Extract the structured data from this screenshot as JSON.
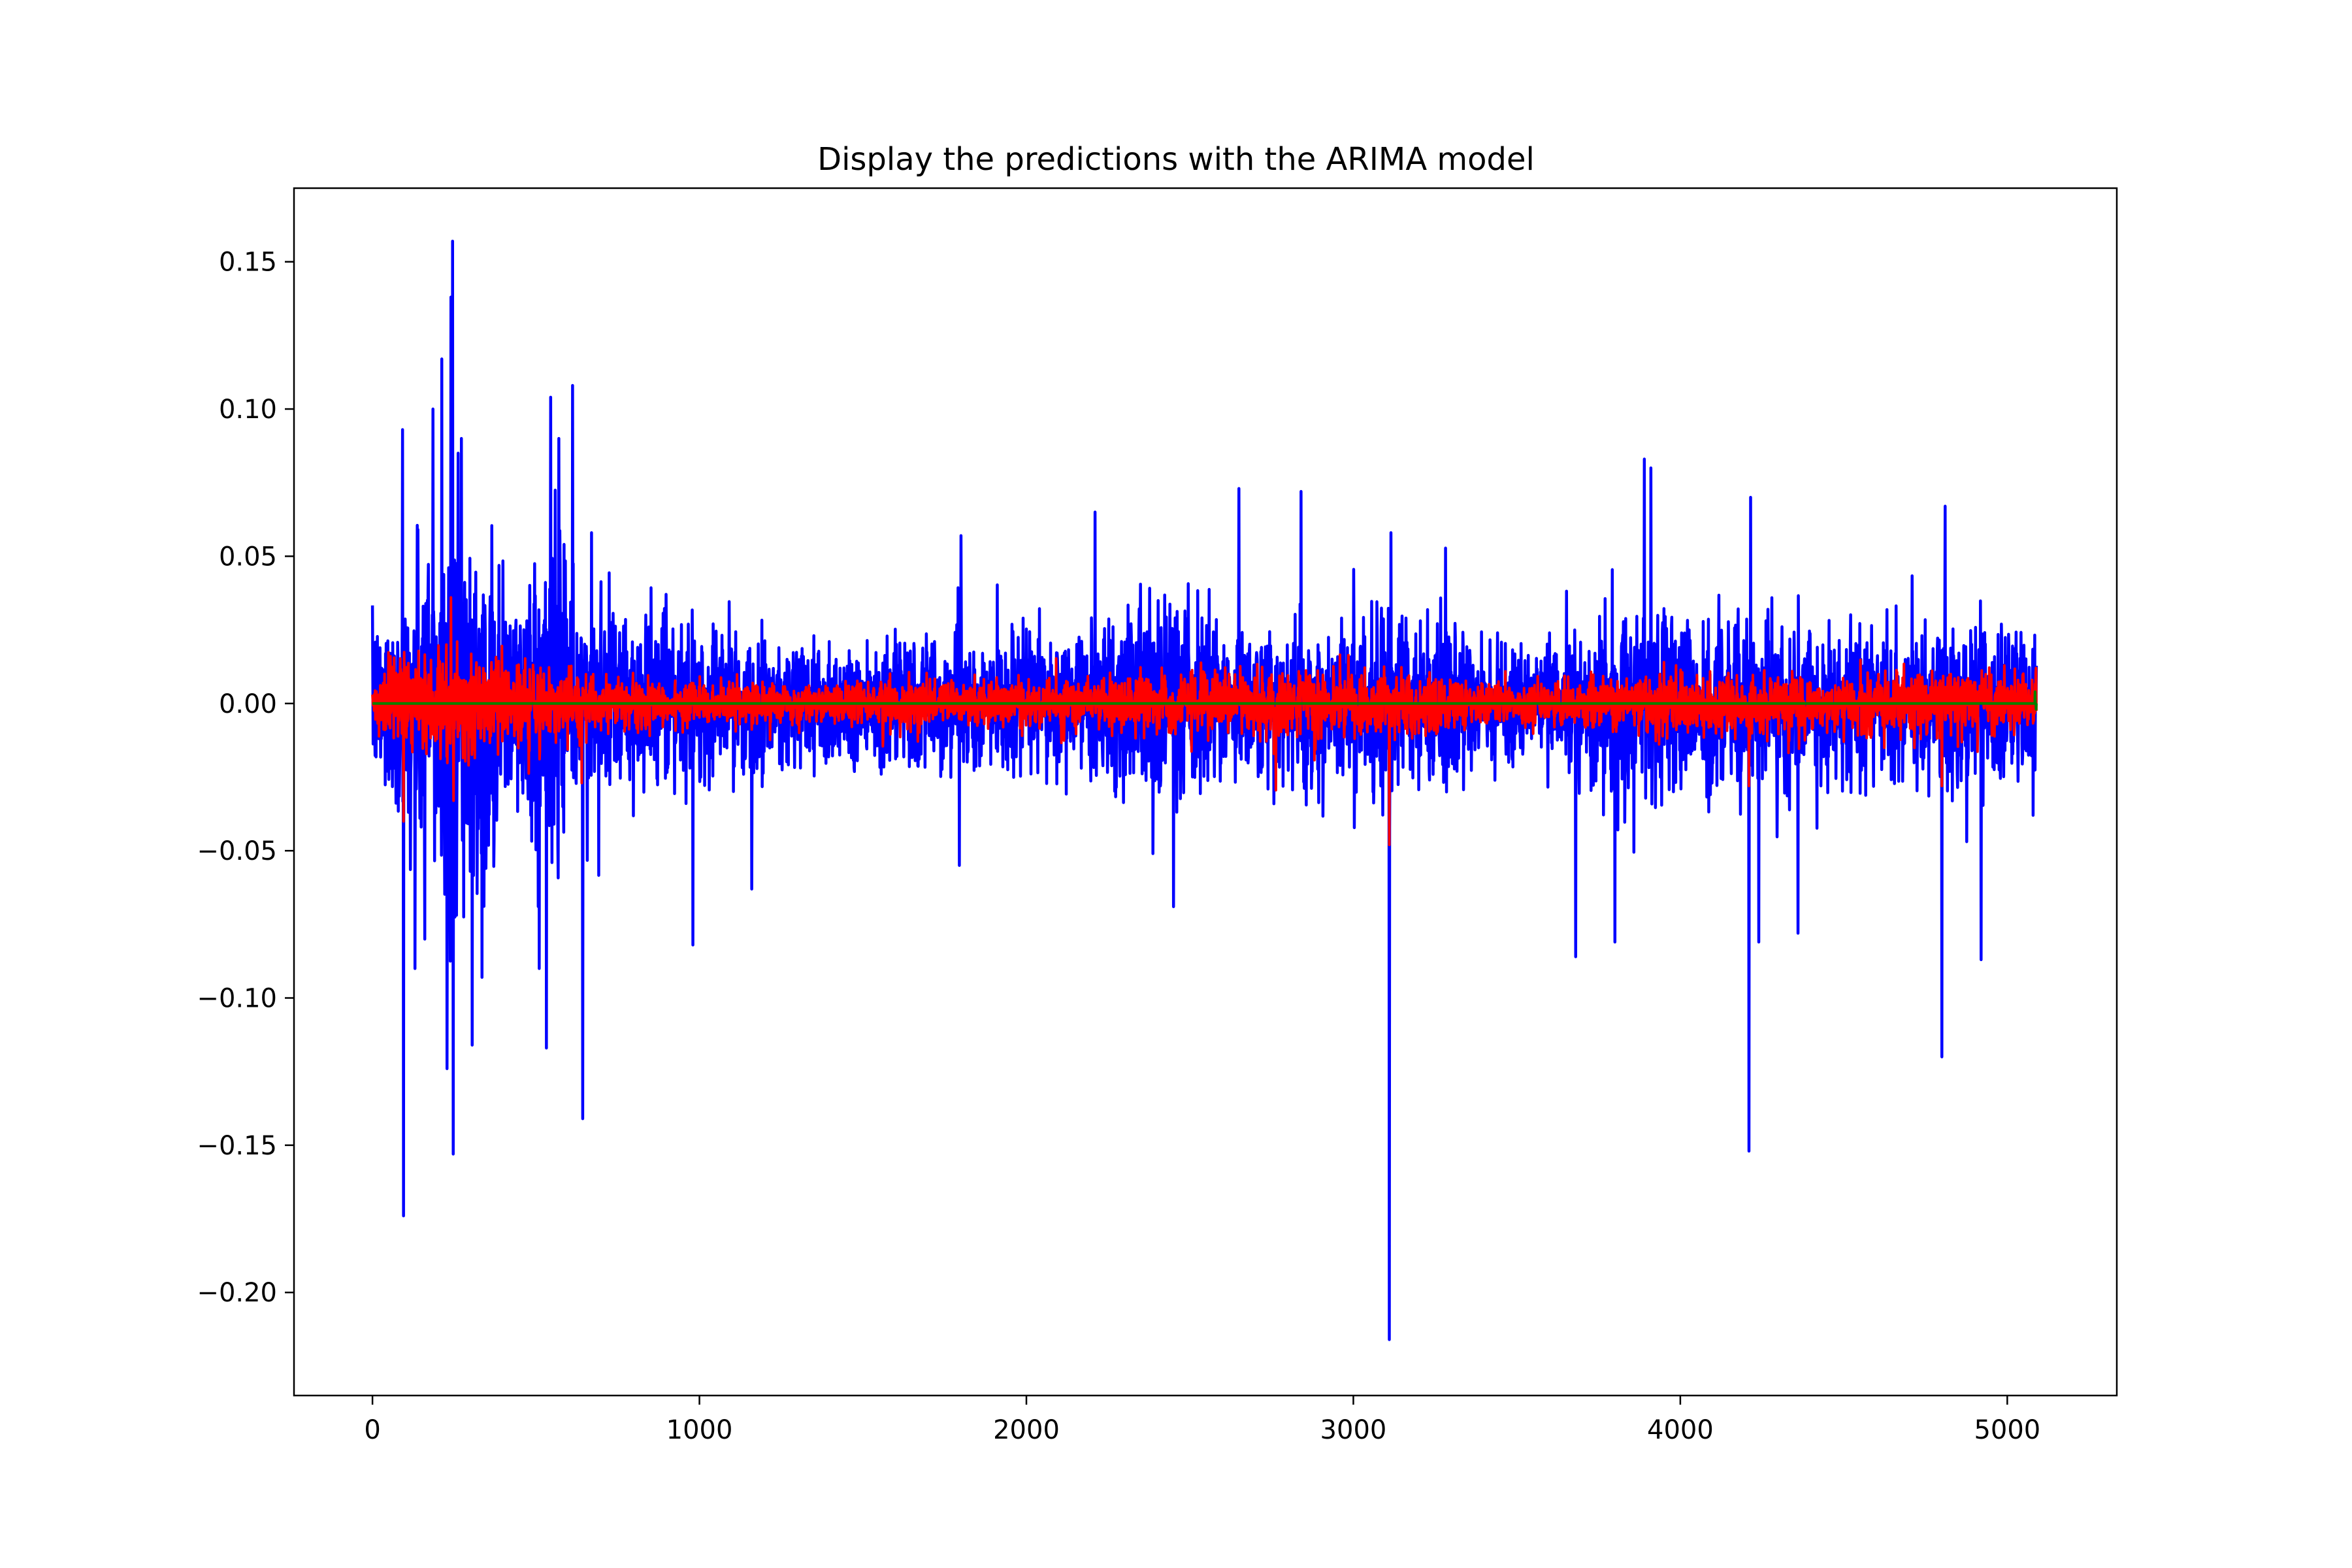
{
  "chart_data": {
    "type": "line",
    "title": "Display the predictions with the ARIMA model",
    "xlabel": "",
    "ylabel": "",
    "xlim": [
      -240,
      5335
    ],
    "ylim": [
      -0.235,
      0.175
    ],
    "xticks": [
      0,
      1000,
      2000,
      3000,
      4000,
      5000
    ],
    "xtick_labels": [
      "0",
      "1000",
      "2000",
      "3000",
      "4000",
      "5000"
    ],
    "yticks": [
      0.15,
      0.1,
      0.05,
      0.0,
      -0.05,
      -0.1,
      -0.15,
      -0.2
    ],
    "ytick_labels": [
      "0.15",
      "0.10",
      "0.05",
      "0.00",
      "−0.05",
      "−0.10",
      "−0.15",
      "−0.20"
    ],
    "grid": false,
    "legend": "none",
    "n_points": 5090,
    "series": [
      {
        "color": "#0000ff",
        "volatility_profile": [
          [
            0,
            0.012
          ],
          [
            100,
            0.02
          ],
          [
            200,
            0.032
          ],
          [
            320,
            0.026
          ],
          [
            450,
            0.017
          ],
          [
            520,
            0.03
          ],
          [
            620,
            0.022
          ],
          [
            700,
            0.015
          ],
          [
            1000,
            0.012
          ],
          [
            1400,
            0.011
          ],
          [
            1800,
            0.01
          ],
          [
            2200,
            0.012
          ],
          [
            2450,
            0.019
          ],
          [
            2600,
            0.012
          ],
          [
            2900,
            0.013
          ],
          [
            3100,
            0.015
          ],
          [
            3300,
            0.012
          ],
          [
            3550,
            0.009
          ],
          [
            3800,
            0.014
          ],
          [
            3950,
            0.016
          ],
          [
            4200,
            0.015
          ],
          [
            4400,
            0.012
          ],
          [
            4800,
            0.013
          ],
          [
            5090,
            0.013
          ]
        ],
        "spikes": [
          [
            95,
            -0.174
          ],
          [
            92,
            0.093
          ],
          [
            130,
            -0.09
          ],
          [
            160,
            -0.08
          ],
          [
            185,
            0.1
          ],
          [
            212,
            0.117
          ],
          [
            228,
            -0.124
          ],
          [
            240,
            0.138
          ],
          [
            245,
            0.157
          ],
          [
            247,
            -0.153
          ],
          [
            262,
            0.085
          ],
          [
            272,
            0.09
          ],
          [
            305,
            -0.116
          ],
          [
            335,
            -0.093
          ],
          [
            510,
            -0.09
          ],
          [
            532,
            -0.117
          ],
          [
            545,
            0.104
          ],
          [
            570,
            0.09
          ],
          [
            612,
            0.108
          ],
          [
            643,
            -0.141
          ],
          [
            670,
            0.058
          ],
          [
            980,
            -0.082
          ],
          [
            1160,
            -0.063
          ],
          [
            1800,
            0.057
          ],
          [
            1795,
            -0.055
          ],
          [
            2210,
            0.065
          ],
          [
            2450,
            -0.069
          ],
          [
            2650,
            0.073
          ],
          [
            2840,
            0.072
          ],
          [
            3110,
            -0.216
          ],
          [
            3115,
            0.058
          ],
          [
            3680,
            -0.086
          ],
          [
            3800,
            -0.081
          ],
          [
            3890,
            0.083
          ],
          [
            3910,
            0.08
          ],
          [
            4210,
            -0.152
          ],
          [
            4215,
            0.07
          ],
          [
            4240,
            -0.081
          ],
          [
            4360,
            -0.078
          ],
          [
            4800,
            -0.12
          ],
          [
            4810,
            0.067
          ],
          [
            4920,
            -0.087
          ]
        ]
      },
      {
        "color": "#ff0000",
        "volatility_profile": [
          [
            0,
            0.005
          ],
          [
            200,
            0.01
          ],
          [
            320,
            0.008
          ],
          [
            500,
            0.007
          ],
          [
            700,
            0.004
          ],
          [
            1500,
            0.0035
          ],
          [
            2200,
            0.004
          ],
          [
            2450,
            0.005
          ],
          [
            3100,
            0.005
          ],
          [
            3500,
            0.0035
          ],
          [
            3900,
            0.005
          ],
          [
            4200,
            0.005
          ],
          [
            4800,
            0.005
          ],
          [
            5090,
            0.005
          ]
        ],
        "spikes": [
          [
            95,
            -0.04
          ],
          [
            240,
            0.036
          ],
          [
            248,
            -0.033
          ],
          [
            640,
            -0.027
          ],
          [
            3110,
            -0.048
          ],
          [
            4210,
            -0.028
          ],
          [
            4800,
            -0.028
          ]
        ]
      },
      {
        "color": "#008000",
        "volatility_profile": [
          [
            0,
            0.0
          ],
          [
            5090,
            0.0
          ]
        ],
        "spikes": [
          [
            5085,
            0.004
          ],
          [
            5088,
            -0.002
          ]
        ]
      }
    ]
  }
}
